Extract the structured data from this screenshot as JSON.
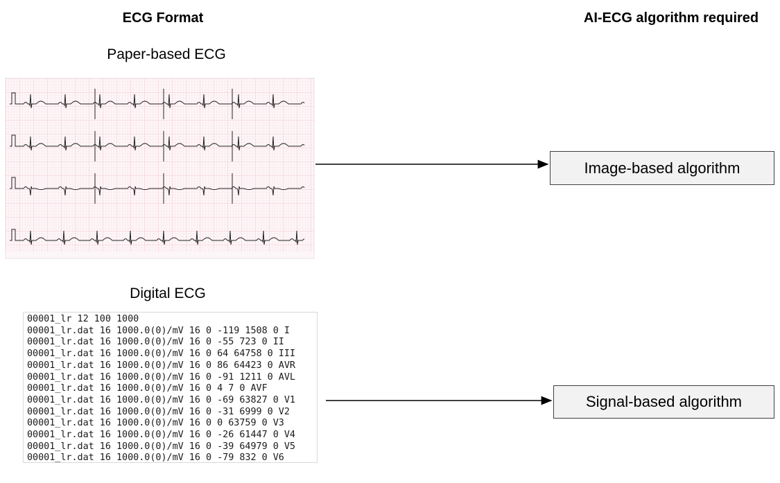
{
  "header": {
    "left_title": "ECG Format",
    "right_title": "AI-ECG algorithm required"
  },
  "paper": {
    "label": "Paper-based ECG"
  },
  "digital": {
    "label": "Digital ECG",
    "lines": [
      "00001_lr 12 100 1000",
      "00001_lr.dat 16 1000.0(0)/mV 16 0 -119 1508 0 I",
      "00001_lr.dat 16 1000.0(0)/mV 16 0 -55 723 0 II",
      "00001_lr.dat 16 1000.0(0)/mV 16 0 64 64758 0 III",
      "00001_lr.dat 16 1000.0(0)/mV 16 0 86 64423 0 AVR",
      "00001_lr.dat 16 1000.0(0)/mV 16 0 -91 1211 0 AVL",
      "00001_lr.dat 16 1000.0(0)/mV 16 0 4 7 0 AVF",
      "00001_lr.dat 16 1000.0(0)/mV 16 0 -69 63827 0 V1",
      "00001_lr.dat 16 1000.0(0)/mV 16 0 -31 6999 0 V2",
      "00001_lr.dat 16 1000.0(0)/mV 16 0 0 63759 0 V3",
      "00001_lr.dat 16 1000.0(0)/mV 16 0 -26 61447 0 V4",
      "00001_lr.dat 16 1000.0(0)/mV 16 0 -39 64979 0 V5",
      "00001_lr.dat 16 1000.0(0)/mV 16 0 -79 832 0 V6"
    ]
  },
  "algorithms": {
    "image": "Image-based algorithm",
    "signal": "Signal-based algorithm"
  }
}
